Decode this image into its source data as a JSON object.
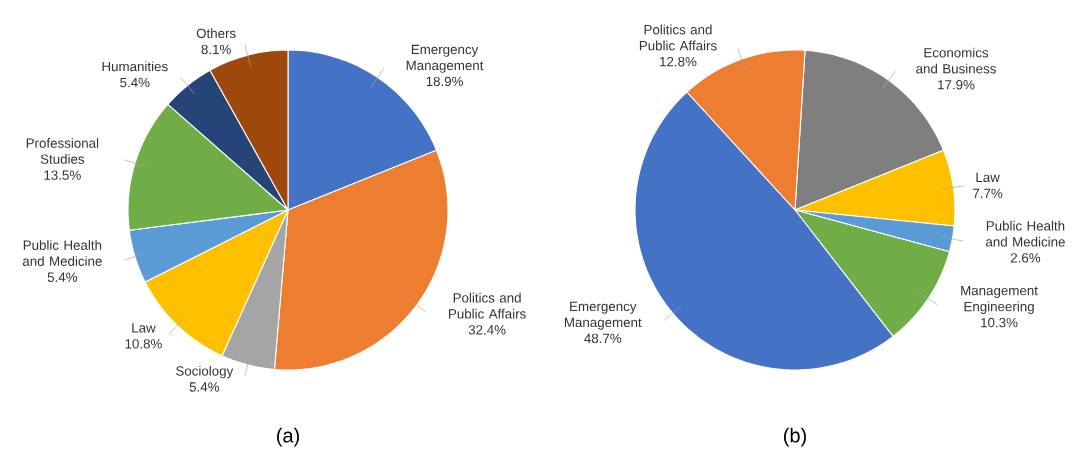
{
  "chart_data": [
    {
      "type": "pie",
      "categories": [
        "Emergency Management",
        "Politics and Public Affairs",
        "Sociology",
        "Law",
        "Public Health and Medicine",
        "Professional Studies",
        "Humanities",
        "Others"
      ],
      "values": [
        18.9,
        32.4,
        5.4,
        10.8,
        5.4,
        13.5,
        5.4,
        8.1
      ],
      "value_labels": [
        "18.9%",
        "32.4%",
        "5.4%",
        "10.8%",
        "5.4%",
        "13.5%",
        "5.4%",
        "8.1%"
      ],
      "colors": [
        "#4472c4",
        "#ed7d31",
        "#a5a5a5",
        "#ffc000",
        "#5b9bd5",
        "#70ad47",
        "#264478",
        "#9e480e"
      ],
      "annotations": [
        "(a)"
      ]
    },
    {
      "type": "pie",
      "categories": [
        "Economics and Business",
        "Law",
        "Public Health and Medicine",
        "Management Engineering",
        "Emergency Management",
        "Politics and Public Affairs"
      ],
      "values": [
        17.9,
        7.7,
        2.6,
        10.3,
        48.7,
        12.8
      ],
      "value_labels": [
        "17.9%",
        "7.7%",
        "2.6%",
        "10.3%",
        "48.7%",
        "12.8%"
      ],
      "colors": [
        "#7f7f7f",
        "#ffc000",
        "#5b9bd5",
        "#70ad47",
        "#4472c4",
        "#ed7d31"
      ],
      "annotations": [
        "(b)"
      ]
    }
  ]
}
